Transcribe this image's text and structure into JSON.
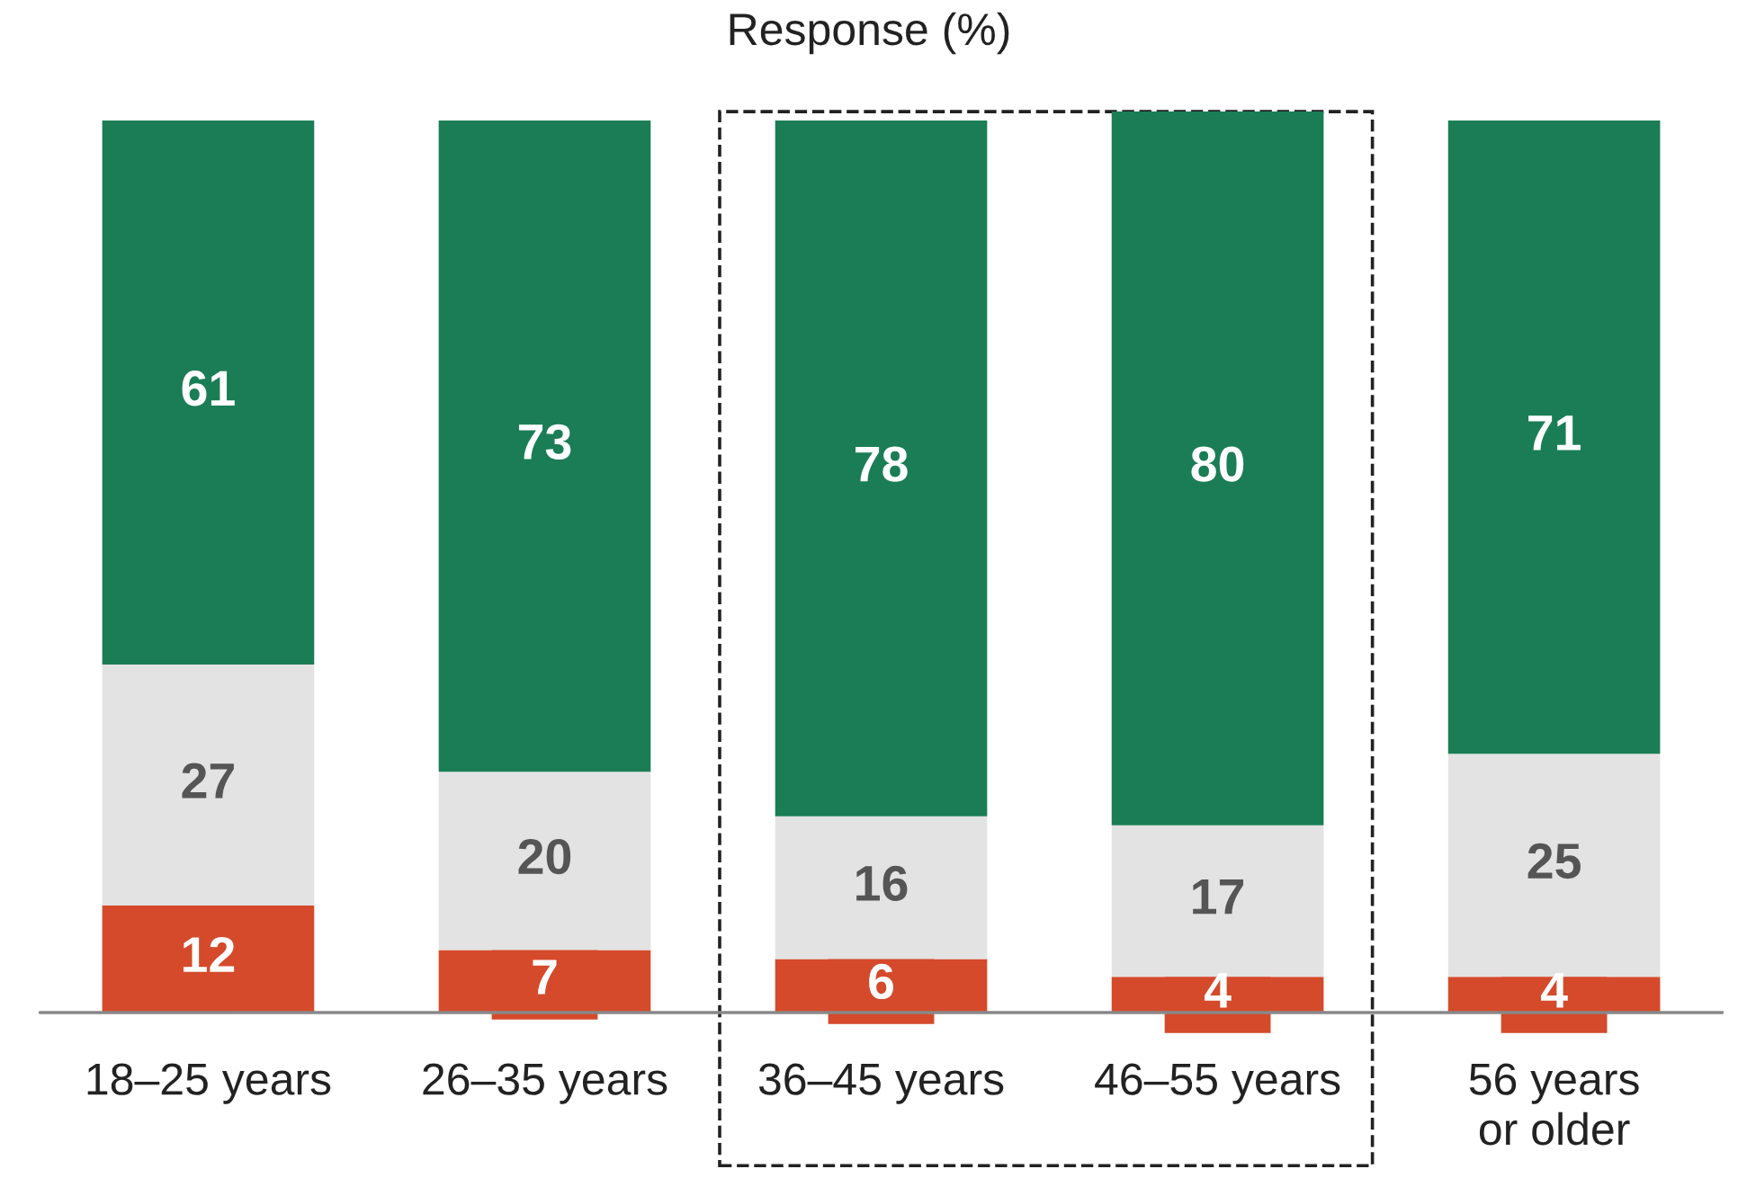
{
  "chart_data": {
    "type": "bar",
    "title": "Response (%)",
    "stacked": true,
    "data_labels": true,
    "tick_labels": "x",
    "categories": [
      "18–25 years",
      "26–35 years",
      "36–45 years",
      "46–55 years",
      "56 years\nor older"
    ],
    "series": [
      {
        "color": "#d44a2b",
        "values": [
          12,
          7,
          6,
          4,
          4
        ]
      },
      {
        "color": "#e3e3e3",
        "values": [
          27,
          20,
          16,
          17,
          25
        ]
      },
      {
        "color": "#1a7d55",
        "values": [
          61,
          73,
          78,
          80,
          71
        ]
      }
    ]
  }
}
